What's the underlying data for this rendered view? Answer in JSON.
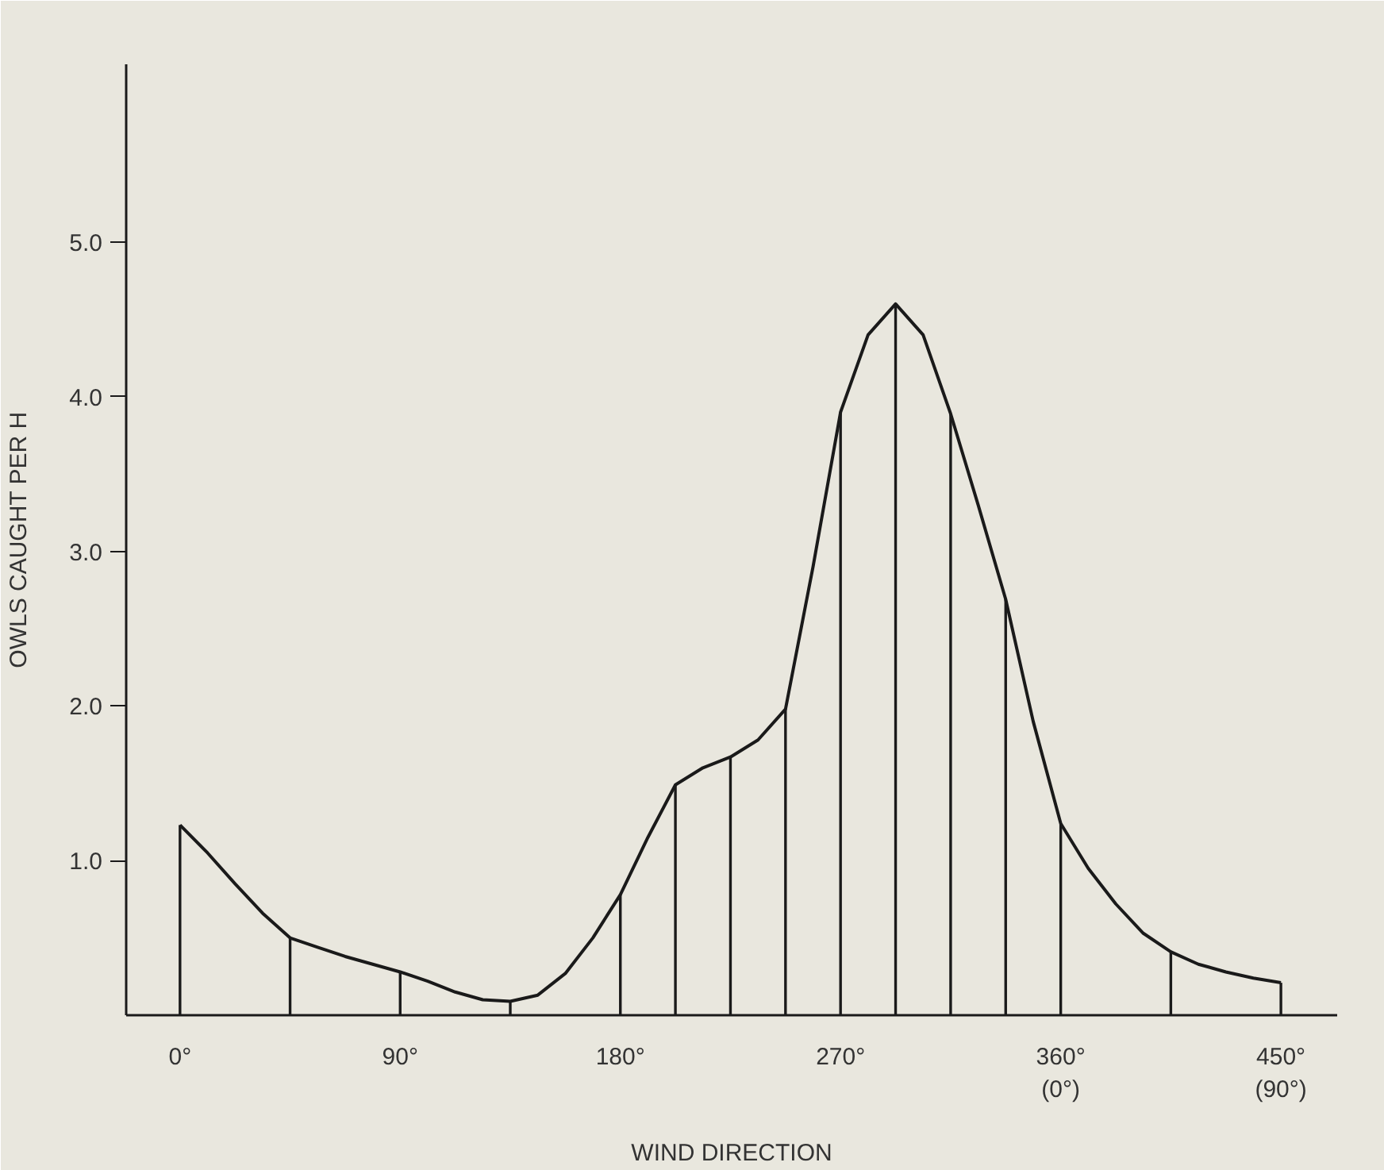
{
  "chart_data": {
    "type": "bar",
    "xlabel": "WIND DIRECTION",
    "ylabel": "OWLS CAUGHT PER H",
    "x": [
      0,
      45,
      90,
      135,
      180,
      202.5,
      225,
      247.5,
      270,
      292.5,
      315,
      337.5,
      360,
      405,
      450
    ],
    "series": [
      {
        "color": "#1a1a1a",
        "values": [
          1.23,
          0.5,
          0.28,
          0.09,
          0.78,
          1.49,
          1.67,
          1.98,
          3.9,
          4.6,
          3.89,
          2.69,
          1.24,
          0.41,
          0.21
        ]
      },
      {
        "type": "line",
        "color": "#1a1a1a",
        "x": [
          0,
          11.25,
          22.5,
          33.75,
          45,
          56.25,
          67.5,
          78.75,
          90,
          101.25,
          112.5,
          123.75,
          135,
          146.25,
          157.5,
          168.75,
          180,
          191.25,
          202.5,
          213.75,
          225,
          236.25,
          247.5,
          258.75,
          270,
          281.25,
          292.5,
          303.75,
          315,
          326.25,
          337.5,
          348.75,
          360,
          371.25,
          382.5,
          393.75,
          405,
          416.25,
          427.5,
          438.75,
          450
        ],
        "values": [
          1.23,
          1.05,
          0.85,
          0.66,
          0.5,
          0.44,
          0.38,
          0.33,
          0.28,
          0.22,
          0.15,
          0.1,
          0.09,
          0.13,
          0.27,
          0.5,
          0.78,
          1.15,
          1.49,
          1.6,
          1.67,
          1.78,
          1.98,
          2.9,
          3.9,
          4.4,
          4.6,
          4.4,
          3.89,
          3.3,
          2.69,
          1.9,
          1.24,
          0.95,
          0.72,
          0.53,
          0.41,
          0.33,
          0.28,
          0.24,
          0.21
        ]
      }
    ],
    "xlim": [
      -22,
      473
    ],
    "ylim": [
      0,
      6.15
    ],
    "xticks": [
      {
        "value": 0,
        "label": "0°"
      },
      {
        "value": 90,
        "label": "90°"
      },
      {
        "value": 180,
        "label": "180°"
      },
      {
        "value": 270,
        "label": "270°"
      },
      {
        "value": 360,
        "label": "360°\n(0°)"
      },
      {
        "value": 450,
        "label": "450°\n(90°)"
      }
    ],
    "yticks": [
      {
        "value": 1,
        "label": "1.0"
      },
      {
        "value": 2,
        "label": "2.0"
      },
      {
        "value": 3,
        "label": "3.0"
      },
      {
        "value": 4,
        "label": "4.0"
      },
      {
        "value": 5,
        "label": "5.0"
      }
    ],
    "grid": false,
    "marker": "none",
    "line_style": "solid"
  }
}
